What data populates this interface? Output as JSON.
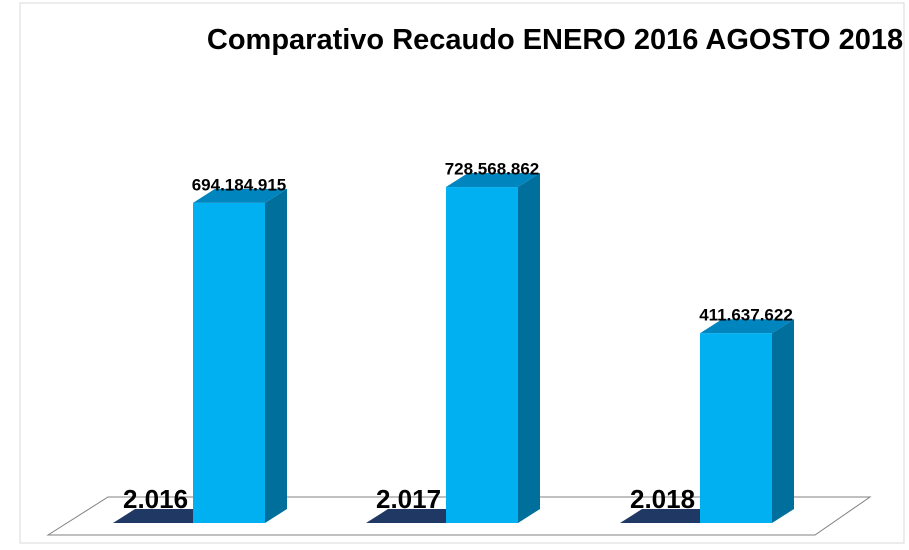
{
  "chart_data": {
    "type": "bar3d",
    "title": "Comparativo Recaudo ENERO 2016 AGOSTO 2018",
    "categories": [
      "2.016",
      "2.017",
      "2.018"
    ],
    "values": [
      694184915,
      728568862,
      411637622
    ],
    "value_labels": [
      "694.184.915",
      "728.568.862",
      "411.637.622"
    ],
    "color": "#00b0f0"
  }
}
